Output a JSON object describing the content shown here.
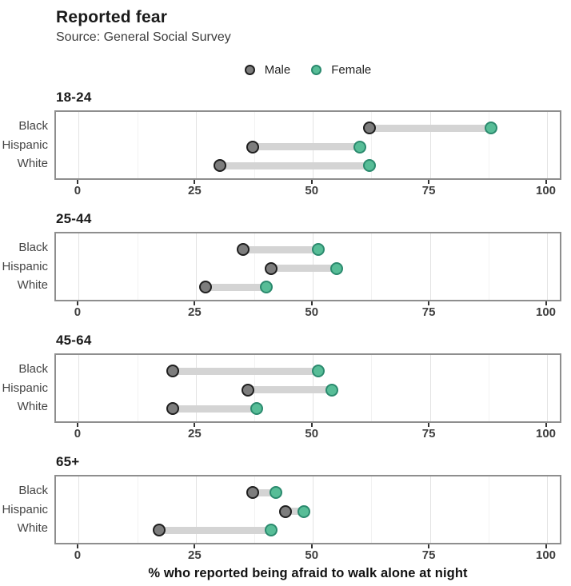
{
  "header": {
    "title": "Reported fear",
    "subtitle": "Source: General Social Survey"
  },
  "legend": {
    "male_label": "Male",
    "female_label": "Female"
  },
  "chart_data": {
    "type": "dumbbell",
    "title": "Reported fear",
    "subtitle": "Source: General Social Survey",
    "xlabel": "% who reported being afraid to walk alone at night",
    "x_domain": [
      -4.95,
      103.33
    ],
    "x_ticks": [
      0,
      25,
      50,
      75,
      100
    ],
    "x_minor_ticks": [
      12.5,
      37.5,
      62.5,
      87.5
    ],
    "grid": "vertical-only",
    "legend_position": "top-center",
    "categories": [
      "Black",
      "Hispanic",
      "White"
    ],
    "series_names": [
      "Male",
      "Female"
    ],
    "colors": {
      "male_fill": "#7d7d7d",
      "male_stroke": "#1f1f1f",
      "female_fill": "#57bd97",
      "female_stroke": "#2b8a6e",
      "connector_bar": "#d4d4d4"
    },
    "groups": [
      {
        "label": "18-24",
        "rows": [
          {
            "category": "Black",
            "male": 62,
            "female": 88
          },
          {
            "category": "Hispanic",
            "male": 37,
            "female": 60
          },
          {
            "category": "White",
            "male": 30,
            "female": 62
          }
        ]
      },
      {
        "label": "25-44",
        "rows": [
          {
            "category": "Black",
            "male": 35,
            "female": 51
          },
          {
            "category": "Hispanic",
            "male": 41,
            "female": 55
          },
          {
            "category": "White",
            "male": 27,
            "female": 40
          }
        ]
      },
      {
        "label": "45-64",
        "rows": [
          {
            "category": "Black",
            "male": 20,
            "female": 51
          },
          {
            "category": "Hispanic",
            "male": 36,
            "female": 54
          },
          {
            "category": "White",
            "male": 20,
            "female": 38
          }
        ]
      },
      {
        "label": "65+",
        "rows": [
          {
            "category": "Black",
            "male": 37,
            "female": 42
          },
          {
            "category": "Hispanic",
            "male": 44,
            "female": 48
          },
          {
            "category": "White",
            "male": 17,
            "female": 41
          }
        ]
      }
    ]
  }
}
